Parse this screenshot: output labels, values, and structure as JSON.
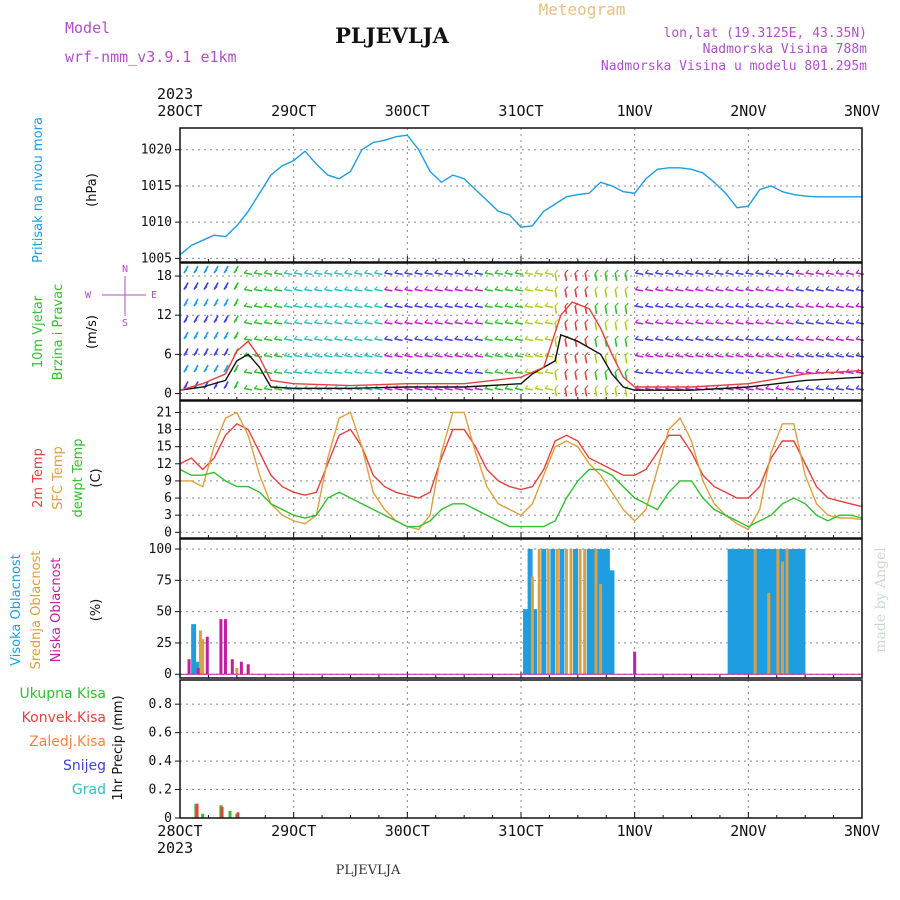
{
  "header": {
    "model_label": "Model",
    "model_name": "wrf-nmm_v3.9.1 e1km",
    "station": "PLJEVLJA",
    "meteogram_label": "Meteogram",
    "coords": "lon,lat (19.3125E, 43.35N)",
    "elevation": "Nadmorska Visina 788m",
    "model_elevation": "Nadmorska Visina u modelu 801.295m",
    "year": "2023",
    "footer_station": "PLJEVLJA",
    "credit": "made by Angel"
  },
  "time_axis": {
    "labels": [
      "28OCT",
      "29OCT",
      "30OCT",
      "31OCT",
      "1NOV",
      "2NOV",
      "3NOV"
    ],
    "year": "2023"
  },
  "chart_data": [
    {
      "type": "line",
      "panel": "pressure",
      "ylabel_1": "Pritisak na nivou mora",
      "ylabel_2": "(hPa)",
      "yticks": [
        "1005",
        "1010",
        "1015",
        "1020"
      ],
      "ylim": [
        1004.5,
        1023
      ],
      "xlim": [
        0,
        6
      ],
      "colors": {
        "pressure": "#1e9ee0"
      },
      "series": [
        {
          "x": [
            0,
            0.1,
            0.2,
            0.3,
            0.4,
            0.5,
            0.6,
            0.7,
            0.8,
            0.9,
            1.0,
            1.1,
            1.2,
            1.3,
            1.4,
            1.5,
            1.6,
            1.7,
            1.8,
            1.9,
            2.0,
            2.1,
            2.2,
            2.3,
            2.4,
            2.5,
            2.6,
            2.7,
            2.8,
            2.9,
            3.0,
            3.1,
            3.2,
            3.3,
            3.4,
            3.5,
            3.6,
            3.7,
            3.8,
            3.9,
            4.0,
            4.1,
            4.2,
            4.3,
            4.4,
            4.5,
            4.6,
            4.7,
            4.8,
            4.9,
            5.0,
            5.1,
            5.2,
            5.3,
            5.4,
            5.5,
            5.6,
            5.7,
            5.8,
            5.9,
            6.0
          ],
          "values": [
            1005.5,
            1006.8,
            1007.5,
            1008.2,
            1008.0,
            1009.5,
            1011.5,
            1014.0,
            1016.5,
            1017.8,
            1018.5,
            1019.8,
            1018.0,
            1016.5,
            1016.0,
            1017.0,
            1020.0,
            1021.0,
            1021.3,
            1021.8,
            1022.0,
            1020.0,
            1017.0,
            1015.5,
            1016.5,
            1016.0,
            1014.5,
            1013.0,
            1011.5,
            1011.0,
            1009.3,
            1009.5,
            1011.5,
            1012.5,
            1013.5,
            1013.8,
            1014.0,
            1015.5,
            1015.0,
            1014.2,
            1014.0,
            1016.0,
            1017.3,
            1017.5,
            1017.5,
            1017.3,
            1016.8,
            1015.5,
            1014.0,
            1012.0,
            1012.2,
            1014.5,
            1015.0,
            1014.2,
            1013.8,
            1013.6,
            1013.5,
            1013.5,
            1013.5,
            1013.5,
            1013.5
          ]
        }
      ]
    },
    {
      "type": "line",
      "panel": "wind",
      "ylabel_1": "10m Vjetar",
      "ylabel_2": "Brzina i Pravac",
      "ylabel_3": "(m/s)",
      "compass": {
        "n": "N",
        "w": "W",
        "e": "E",
        "s": "S"
      },
      "yticks": [
        "0",
        "6",
        "12",
        "18"
      ],
      "ylim": [
        -1,
        20
      ],
      "xlim": [
        0,
        6
      ],
      "colors": {
        "speed": "#111111",
        "gust": "#e64040"
      },
      "series": [
        {
          "name": "speed",
          "x": [
            0,
            0.2,
            0.4,
            0.5,
            0.6,
            0.7,
            0.8,
            1.0,
            1.5,
            2.0,
            2.5,
            3.0,
            3.1,
            3.2,
            3.3,
            3.35,
            3.5,
            3.7,
            3.8,
            3.9,
            4.0,
            4.5,
            5.0,
            5.5,
            6.0
          ],
          "values": [
            0.5,
            1.0,
            2.0,
            5.0,
            6.0,
            4.0,
            1.0,
            0.8,
            0.8,
            1.0,
            1.0,
            1.5,
            3.0,
            4.0,
            5.0,
            9.0,
            8.0,
            6.0,
            3.0,
            1.0,
            0.5,
            0.5,
            1.0,
            2.0,
            2.5
          ]
        },
        {
          "name": "gust",
          "x": [
            0,
            0.2,
            0.4,
            0.5,
            0.6,
            0.7,
            0.8,
            1.0,
            1.5,
            2.0,
            2.5,
            3.0,
            3.2,
            3.35,
            3.45,
            3.6,
            3.7,
            3.8,
            3.9,
            4.0,
            4.5,
            5.0,
            5.5,
            6.0
          ],
          "values": [
            0.5,
            1.5,
            3.0,
            6.5,
            8.0,
            5.5,
            2.0,
            1.5,
            1.2,
            1.5,
            1.5,
            2.5,
            4.0,
            12.0,
            14.0,
            13.0,
            10.0,
            6.0,
            2.5,
            1.0,
            1.0,
            1.5,
            3.0,
            3.5
          ]
        }
      ]
    },
    {
      "type": "line",
      "panel": "temperature",
      "ylabel_1": "2m Temp",
      "ylabel_2": "SFC Temp",
      "ylabel_3": "dewpt Temp",
      "ylabel_4": "(C)",
      "yticks": [
        "0",
        "3",
        "6",
        "9",
        "12",
        "15",
        "18",
        "21"
      ],
      "ylim": [
        -1,
        23
      ],
      "xlim": [
        0,
        6
      ],
      "colors": {
        "t2m": "#e64040",
        "tsfc": "#dda040",
        "dewpt": "#30c030"
      },
      "series": [
        {
          "name": "t2m",
          "x": [
            0,
            0.1,
            0.2,
            0.3,
            0.4,
            0.5,
            0.6,
            0.7,
            0.8,
            0.9,
            1.0,
            1.1,
            1.2,
            1.3,
            1.4,
            1.5,
            1.6,
            1.7,
            1.8,
            1.9,
            2.0,
            2.1,
            2.2,
            2.3,
            2.4,
            2.5,
            2.6,
            2.7,
            2.8,
            2.9,
            3.0,
            3.1,
            3.2,
            3.3,
            3.4,
            3.5,
            3.6,
            3.7,
            3.8,
            3.9,
            4.0,
            4.1,
            4.2,
            4.3,
            4.4,
            4.5,
            4.6,
            4.7,
            4.8,
            4.9,
            5.0,
            5.1,
            5.2,
            5.3,
            5.4,
            5.5,
            5.6,
            5.7,
            5.8,
            5.9,
            6.0
          ],
          "values": [
            12,
            13,
            11,
            13,
            17,
            19,
            18,
            14,
            10,
            8,
            7,
            6.5,
            7,
            12,
            17,
            18,
            15,
            10,
            8,
            7,
            6.5,
            6,
            7,
            13,
            18,
            18,
            15,
            11,
            9,
            8,
            7.5,
            8,
            11,
            16,
            17,
            16,
            13,
            12,
            11,
            10,
            10,
            11,
            14,
            17,
            17,
            14,
            10,
            8,
            7,
            6,
            6,
            8,
            13,
            16,
            16,
            12,
            8,
            6,
            5.5,
            5,
            4.5
          ]
        },
        {
          "name": "tsfc",
          "x": [
            0,
            0.1,
            0.2,
            0.3,
            0.4,
            0.5,
            0.6,
            0.7,
            0.8,
            0.9,
            1.0,
            1.1,
            1.2,
            1.3,
            1.4,
            1.5,
            1.6,
            1.7,
            1.8,
            1.9,
            2.0,
            2.1,
            2.2,
            2.3,
            2.4,
            2.5,
            2.6,
            2.7,
            2.8,
            2.9,
            3.0,
            3.1,
            3.2,
            3.3,
            3.4,
            3.5,
            3.6,
            3.7,
            3.8,
            3.9,
            4.0,
            4.1,
            4.2,
            4.3,
            4.4,
            4.5,
            4.6,
            4.7,
            4.8,
            4.9,
            5.0,
            5.1,
            5.2,
            5.3,
            5.4,
            5.5,
            5.6,
            5.7,
            5.8,
            5.9,
            6.0
          ],
          "values": [
            9,
            9,
            8,
            15,
            20,
            21,
            17,
            10,
            5,
            3,
            2,
            1.5,
            3,
            13,
            20,
            21,
            15,
            7,
            4,
            2,
            1,
            0.5,
            3,
            14,
            21,
            21,
            14,
            8,
            5,
            4,
            3,
            5,
            10,
            15,
            16,
            15,
            12,
            10,
            7,
            4,
            2,
            4,
            11,
            18,
            20,
            16,
            9,
            5,
            3,
            1.5,
            0.5,
            4,
            14,
            19,
            19,
            10,
            5,
            3,
            2.5,
            2.5,
            2.2
          ]
        },
        {
          "name": "dewpt",
          "x": [
            0,
            0.1,
            0.2,
            0.3,
            0.4,
            0.5,
            0.6,
            0.7,
            0.8,
            0.9,
            1.0,
            1.1,
            1.2,
            1.3,
            1.4,
            1.5,
            1.6,
            1.7,
            1.8,
            1.9,
            2.0,
            2.1,
            2.2,
            2.3,
            2.4,
            2.5,
            2.6,
            2.7,
            2.8,
            2.9,
            3.0,
            3.1,
            3.2,
            3.3,
            3.4,
            3.5,
            3.6,
            3.7,
            3.8,
            3.9,
            4.0,
            4.1,
            4.2,
            4.3,
            4.4,
            4.5,
            4.6,
            4.7,
            4.8,
            4.9,
            5.0,
            5.1,
            5.2,
            5.3,
            5.4,
            5.5,
            5.6,
            5.7,
            5.8,
            5.9,
            6.0
          ],
          "values": [
            11,
            10,
            10,
            10.5,
            9,
            8,
            8,
            7,
            5,
            4,
            3,
            2.5,
            3,
            6,
            7,
            6,
            5,
            4,
            3,
            2,
            1,
            1,
            2,
            4,
            5,
            5,
            4,
            3,
            2,
            1,
            1,
            1,
            1,
            2,
            6,
            9,
            11,
            11,
            10,
            8,
            6,
            5,
            4,
            7,
            9,
            9,
            6,
            4,
            3,
            2,
            1,
            2,
            3,
            5,
            6,
            5,
            3,
            2,
            3,
            3,
            2.5
          ]
        }
      ]
    },
    {
      "type": "bar",
      "panel": "cloud",
      "ylabel_1": "Visoka Oblacnost",
      "ylabel_2": "Srednja Oblacnost",
      "ylabel_3": "Niska Oblacnost",
      "ylabel_4": "(%)",
      "yticks": [
        "0",
        "25",
        "50",
        "75",
        "100"
      ],
      "ylim": [
        -3,
        108
      ],
      "xlim": [
        0,
        6
      ],
      "colors": {
        "high": "#1e9ee0",
        "mid": "#dda040",
        "low": "#c020a0"
      },
      "series": [
        {
          "name": "high",
          "x": [
            0.12,
            0.15,
            3.04,
            3.08,
            3.12,
            3.2,
            3.28,
            3.36,
            3.48,
            3.6,
            3.64,
            3.68,
            3.72,
            3.76,
            3.8,
            4.84,
            4.88,
            4.92,
            4.96,
            5.0,
            5.04,
            5.08,
            5.12,
            5.16,
            5.2,
            5.24,
            5.28,
            5.32,
            5.36,
            5.4,
            5.44,
            5.48
          ],
          "values": [
            40,
            10,
            52,
            100,
            52,
            100,
            100,
            100,
            100,
            100,
            100,
            100,
            100,
            100,
            83,
            100,
            100,
            100,
            100,
            100,
            100,
            100,
            100,
            100,
            100,
            100,
            100,
            100,
            100,
            100,
            100,
            100
          ]
        },
        {
          "name": "mid",
          "x": [
            0.18,
            0.2,
            0.5,
            3.1,
            3.16,
            3.24,
            3.32,
            3.4,
            3.44,
            3.52,
            3.56,
            3.66,
            3.7,
            5.06,
            5.18,
            5.26,
            5.3,
            5.34
          ],
          "values": [
            35,
            28,
            5,
            78,
            100,
            100,
            100,
            100,
            100,
            100,
            100,
            100,
            72,
            100,
            65,
            100,
            90,
            100
          ],
          "_note": ""
        },
        {
          "name": "low",
          "x": [
            0.08,
            0.16,
            0.24,
            0.36,
            0.4,
            0.46,
            0.54,
            0.6,
            4.0
          ],
          "values": [
            12,
            5,
            30,
            44,
            44,
            12,
            10,
            8,
            18
          ]
        }
      ]
    },
    {
      "type": "bar",
      "panel": "precip",
      "ylabel_1": "1hr Precip (mm)",
      "legend": [
        "Ukupna Kisa",
        "Konvek.Kisa",
        "Zaledj.Kisa",
        "Snijeg",
        "Grad"
      ],
      "yticks": [
        "0",
        "0.2",
        "0.4",
        "0.6",
        "0.8"
      ],
      "ylim": [
        0,
        0.97
      ],
      "xlim": [
        0,
        6
      ],
      "colors": {
        "total": "#30c030",
        "conv": "#e64040",
        "frz": "#ff8040",
        "snow": "#4040e0",
        "grad": "#30c0c0"
      },
      "series": [
        {
          "name": "total",
          "x": [
            0.14,
            0.2,
            0.36,
            0.44,
            0.5
          ],
          "values": [
            0.1,
            0.03,
            0.09,
            0.05,
            0.03
          ]
        },
        {
          "name": "conv",
          "x": [
            0.15,
            0.37,
            0.51
          ],
          "values": [
            0.1,
            0.08,
            0.04
          ]
        }
      ]
    }
  ]
}
